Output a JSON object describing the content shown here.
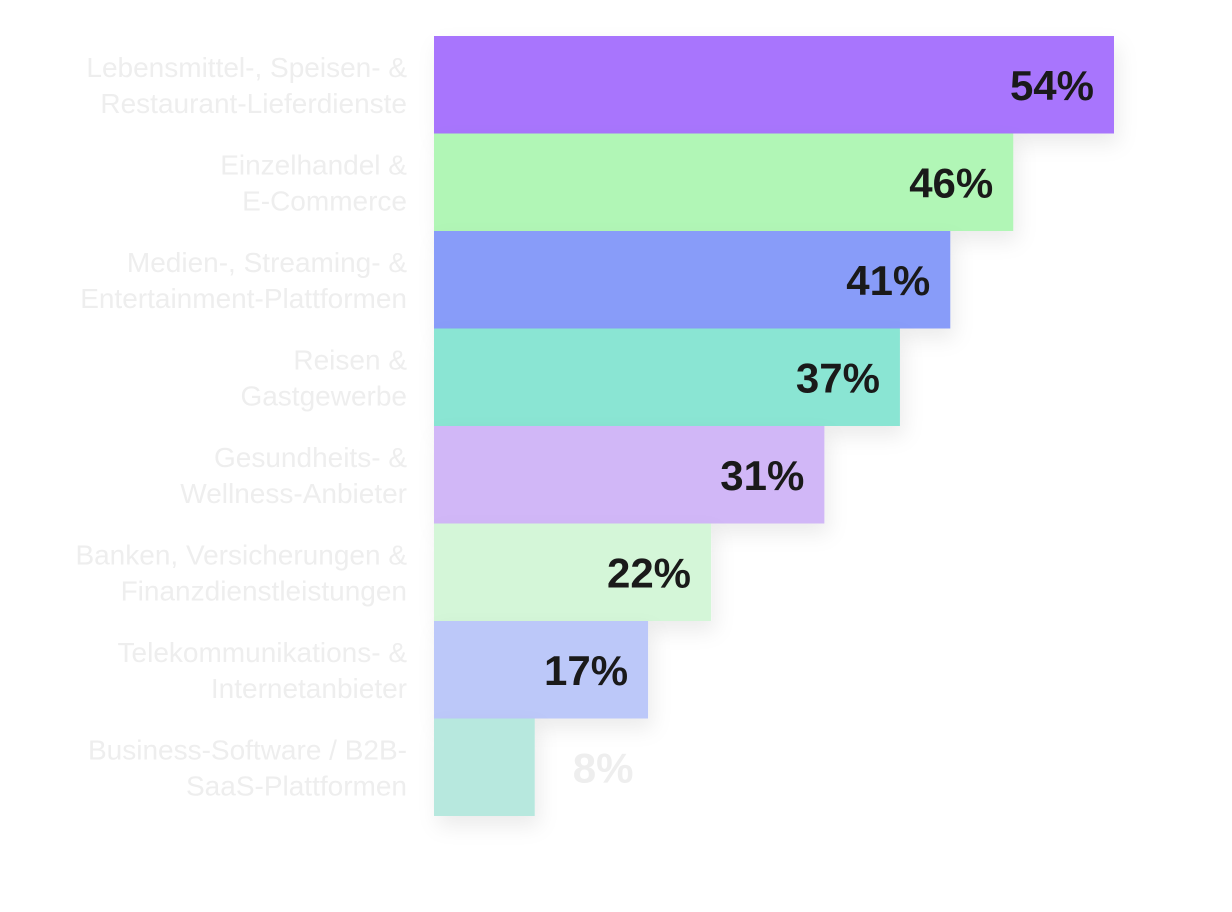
{
  "chart_data": {
    "type": "bar",
    "orientation": "horizontal",
    "unit": "%",
    "categories": [
      [
        "Lebensmittel-, Speisen- &",
        "Restaurant-Lieferdienste"
      ],
      [
        "Einzelhandel &",
        "E-Commerce"
      ],
      [
        "Medien-, Streaming- &",
        "Entertainment-Plattformen"
      ],
      [
        "Reisen &",
        "Gastgewerbe"
      ],
      [
        "Gesundheits- &",
        "Wellness-Anbieter"
      ],
      [
        "Banken, Versicherungen &",
        "Finanzdienstleistungen"
      ],
      [
        "Telekommunikations- &",
        "Internetanbieter"
      ],
      [
        "Business-Software / B2B-",
        "SaaS-Plattformen"
      ]
    ],
    "values": [
      54,
      46,
      41,
      37,
      31,
      22,
      17,
      8
    ],
    "value_labels": [
      "54%",
      "46%",
      "41%",
      "37%",
      "31%",
      "22%",
      "17%",
      "8%"
    ],
    "colors": [
      "#a875fd",
      "#b1f6b6",
      "#889cf9",
      "#8ae5d3",
      "#d1b7f7",
      "#d4f6d8",
      "#bcc8f9",
      "#b7e8de"
    ],
    "value_label_colors": [
      "#1a1a1a",
      "#1a1a1a",
      "#1a1a1a",
      "#1a1a1a",
      "#1a1a1a",
      "#1a1a1a",
      "#1a1a1a",
      "#eeeeee"
    ],
    "category_label_color": "#eeeeee",
    "xlim": [
      0,
      54
    ],
    "grid": false,
    "legend": "none"
  }
}
